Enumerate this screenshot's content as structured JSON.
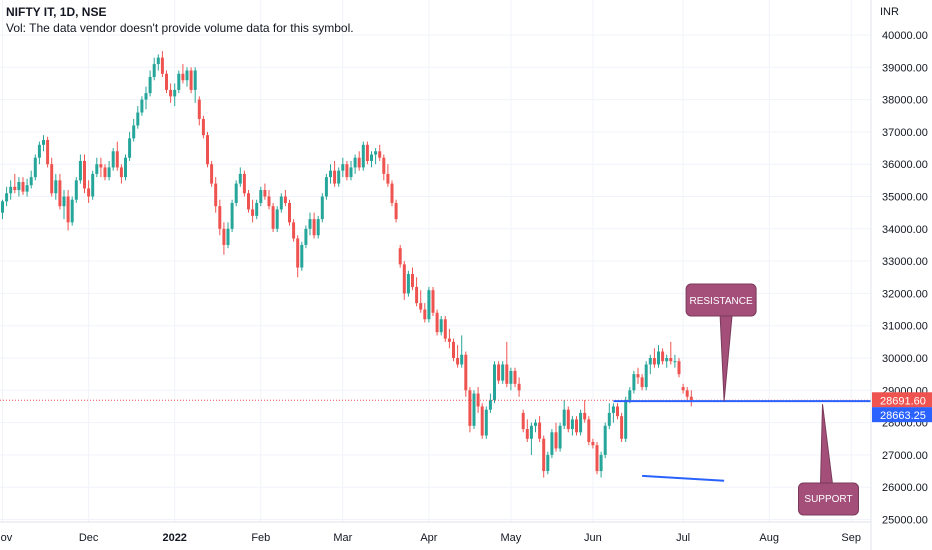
{
  "legend": {
    "title": "NIFTY IT, 1D, NSE",
    "vol_note": "Vol: The data vendor doesn't provide volume data for this symbol."
  },
  "currency": "INR",
  "colors": {
    "up": "#26a69a",
    "down": "#ef5350",
    "line": "#2962ff",
    "callout": "#a34f7a",
    "price_label": "#ef5350",
    "line_label": "#2962ff"
  },
  "chart_data": {
    "type": "candlestick",
    "symbol": "NIFTY IT",
    "interval": "1D",
    "exchange": "NSE",
    "ylim": [
      24900,
      40700
    ],
    "x_ticks": [
      {
        "label": "Nov",
        "i": 0,
        "bold": false
      },
      {
        "label": "Dec",
        "i": 21,
        "bold": false
      },
      {
        "label": "2022",
        "i": 42,
        "bold": true
      },
      {
        "label": "Feb",
        "i": 63,
        "bold": false
      },
      {
        "label": "Mar",
        "i": 83,
        "bold": false
      },
      {
        "label": "Apr",
        "i": 104,
        "bold": false
      },
      {
        "label": "May",
        "i": 124,
        "bold": false
      },
      {
        "label": "Jun",
        "i": 144,
        "bold": false
      },
      {
        "label": "Jul",
        "i": 166,
        "bold": false
      },
      {
        "label": "Aug",
        "i": 187,
        "bold": false
      },
      {
        "label": "Sep",
        "i": 207,
        "bold": false
      }
    ],
    "y_ticks": [
      {
        "value": 40000,
        "label": "40000.00"
      },
      {
        "value": 39000,
        "label": "39000.00"
      },
      {
        "value": 38000,
        "label": "38000.00"
      },
      {
        "value": 37000,
        "label": "37000.00"
      },
      {
        "value": 36000,
        "label": "36000.00"
      },
      {
        "value": 35000,
        "label": "35000.00"
      },
      {
        "value": 34000,
        "label": "34000.00"
      },
      {
        "value": 33000,
        "label": "33000.00"
      },
      {
        "value": 32000,
        "label": "32000.00"
      },
      {
        "value": 31000,
        "label": "31000.00"
      },
      {
        "value": 30000,
        "label": "30000.00"
      },
      {
        "value": 29000,
        "label": "29000.00"
      },
      {
        "value": 28000,
        "label": "28000.00"
      },
      {
        "value": 27000,
        "label": "27000.00"
      },
      {
        "value": 26000,
        "label": "26000.00"
      },
      {
        "value": 25000,
        "label": "25000.00"
      }
    ],
    "last_price": {
      "value": 28691.6,
      "label": "28691.60"
    },
    "resistance_line": {
      "value": 28663.25,
      "label": "28663.25",
      "from_i": 149
    },
    "support_line": {
      "from": {
        "i": 156,
        "value": 26350
      },
      "to": {
        "i": 176,
        "value": 26200
      }
    },
    "annotations": [
      {
        "text": "RESISTANCE",
        "anchor": {
          "i": 176,
          "value": 28663
        }
      },
      {
        "text": "SUPPORT",
        "anchor": {
          "i": 200,
          "value": 28663
        }
      }
    ],
    "candles": [
      {
        "o": 34500,
        "h": 34900,
        "l": 34300,
        "c": 34850
      },
      {
        "o": 34850,
        "h": 35300,
        "l": 34700,
        "c": 35100
      },
      {
        "o": 35100,
        "h": 35500,
        "l": 34900,
        "c": 35300
      },
      {
        "o": 35300,
        "h": 35700,
        "l": 35100,
        "c": 35200
      },
      {
        "o": 35200,
        "h": 35600,
        "l": 35000,
        "c": 35450
      },
      {
        "o": 35450,
        "h": 35600,
        "l": 35050,
        "c": 35150
      },
      {
        "o": 35150,
        "h": 35550,
        "l": 35000,
        "c": 35350
      },
      {
        "o": 35350,
        "h": 35800,
        "l": 35250,
        "c": 35600
      },
      {
        "o": 35600,
        "h": 36300,
        "l": 35500,
        "c": 36200
      },
      {
        "o": 36200,
        "h": 36700,
        "l": 36000,
        "c": 36600
      },
      {
        "o": 36600,
        "h": 36900,
        "l": 36400,
        "c": 36750
      },
      {
        "o": 36750,
        "h": 36850,
        "l": 35900,
        "c": 36000
      },
      {
        "o": 36000,
        "h": 36200,
        "l": 35000,
        "c": 35100
      },
      {
        "o": 35100,
        "h": 35700,
        "l": 34900,
        "c": 35500
      },
      {
        "o": 35500,
        "h": 35700,
        "l": 34600,
        "c": 34700
      },
      {
        "o": 34700,
        "h": 35200,
        "l": 34300,
        "c": 35000
      },
      {
        "o": 35000,
        "h": 35200,
        "l": 33950,
        "c": 34200
      },
      {
        "o": 34200,
        "h": 35000,
        "l": 34100,
        "c": 34900
      },
      {
        "o": 34900,
        "h": 35600,
        "l": 34800,
        "c": 35500
      },
      {
        "o": 35500,
        "h": 36300,
        "l": 35400,
        "c": 36100
      },
      {
        "o": 36100,
        "h": 36300,
        "l": 35100,
        "c": 35250
      },
      {
        "o": 35250,
        "h": 35500,
        "l": 34800,
        "c": 35000
      },
      {
        "o": 35000,
        "h": 35800,
        "l": 34900,
        "c": 35700
      },
      {
        "o": 35700,
        "h": 36200,
        "l": 35600,
        "c": 36000
      },
      {
        "o": 36000,
        "h": 36200,
        "l": 35600,
        "c": 35900
      },
      {
        "o": 35900,
        "h": 36000,
        "l": 35500,
        "c": 35600
      },
      {
        "o": 35600,
        "h": 36100,
        "l": 35500,
        "c": 35900
      },
      {
        "o": 35900,
        "h": 36500,
        "l": 35800,
        "c": 36400
      },
      {
        "o": 36400,
        "h": 36700,
        "l": 35800,
        "c": 35900
      },
      {
        "o": 35900,
        "h": 36000,
        "l": 35400,
        "c": 35600
      },
      {
        "o": 35600,
        "h": 36300,
        "l": 35500,
        "c": 36200
      },
      {
        "o": 36200,
        "h": 37000,
        "l": 36100,
        "c": 36800
      },
      {
        "o": 36800,
        "h": 37400,
        "l": 36700,
        "c": 37200
      },
      {
        "o": 37200,
        "h": 37800,
        "l": 37100,
        "c": 37600
      },
      {
        "o": 37600,
        "h": 38100,
        "l": 37500,
        "c": 38000
      },
      {
        "o": 38000,
        "h": 38400,
        "l": 37700,
        "c": 38200
      },
      {
        "o": 38200,
        "h": 38900,
        "l": 38100,
        "c": 38700
      },
      {
        "o": 38700,
        "h": 39300,
        "l": 38600,
        "c": 39100
      },
      {
        "o": 39100,
        "h": 39400,
        "l": 38900,
        "c": 39300
      },
      {
        "o": 39300,
        "h": 39500,
        "l": 38700,
        "c": 38800
      },
      {
        "o": 38800,
        "h": 38900,
        "l": 38200,
        "c": 38300
      },
      {
        "o": 38300,
        "h": 38500,
        "l": 37900,
        "c": 38100
      },
      {
        "o": 38100,
        "h": 38500,
        "l": 37800,
        "c": 38300
      },
      {
        "o": 38300,
        "h": 38900,
        "l": 38200,
        "c": 38800
      },
      {
        "o": 38800,
        "h": 39100,
        "l": 38500,
        "c": 38600
      },
      {
        "o": 38600,
        "h": 39000,
        "l": 38400,
        "c": 38900
      },
      {
        "o": 38900,
        "h": 39000,
        "l": 38200,
        "c": 38300
      },
      {
        "o": 38300,
        "h": 39000,
        "l": 37900,
        "c": 38900
      },
      {
        "o": 38000,
        "h": 38100,
        "l": 37200,
        "c": 37400
      },
      {
        "o": 37400,
        "h": 37500,
        "l": 36800,
        "c": 36900
      },
      {
        "o": 36900,
        "h": 37000,
        "l": 35900,
        "c": 36000
      },
      {
        "o": 36000,
        "h": 36100,
        "l": 35300,
        "c": 35400
      },
      {
        "o": 35400,
        "h": 35600,
        "l": 34500,
        "c": 34700
      },
      {
        "o": 34700,
        "h": 34900,
        "l": 33800,
        "c": 34000
      },
      {
        "o": 34000,
        "h": 34200,
        "l": 33200,
        "c": 33500
      },
      {
        "o": 33500,
        "h": 34200,
        "l": 33400,
        "c": 34000
      },
      {
        "o": 34000,
        "h": 34900,
        "l": 33900,
        "c": 34800
      },
      {
        "o": 34800,
        "h": 35500,
        "l": 34700,
        "c": 35400
      },
      {
        "o": 35400,
        "h": 35900,
        "l": 35300,
        "c": 35700
      },
      {
        "o": 35700,
        "h": 35800,
        "l": 35000,
        "c": 35100
      },
      {
        "o": 35100,
        "h": 35200,
        "l": 34500,
        "c": 34600
      },
      {
        "o": 34600,
        "h": 34900,
        "l": 34200,
        "c": 34400
      },
      {
        "o": 34400,
        "h": 34900,
        "l": 34300,
        "c": 34800
      },
      {
        "o": 34800,
        "h": 35300,
        "l": 34700,
        "c": 35200
      },
      {
        "o": 35200,
        "h": 35400,
        "l": 34900,
        "c": 35000
      },
      {
        "o": 35000,
        "h": 35200,
        "l": 34600,
        "c": 34700
      },
      {
        "o": 34700,
        "h": 34800,
        "l": 33900,
        "c": 34000
      },
      {
        "o": 34000,
        "h": 34700,
        "l": 33900,
        "c": 34600
      },
      {
        "o": 34600,
        "h": 35100,
        "l": 34500,
        "c": 35000
      },
      {
        "o": 35000,
        "h": 35200,
        "l": 34700,
        "c": 34800
      },
      {
        "o": 34800,
        "h": 34900,
        "l": 34100,
        "c": 34200
      },
      {
        "o": 34200,
        "h": 34300,
        "l": 33600,
        "c": 33700
      },
      {
        "o": 33700,
        "h": 33800,
        "l": 32500,
        "c": 32800
      },
      {
        "o": 32800,
        "h": 33600,
        "l": 32700,
        "c": 33500
      },
      {
        "o": 33500,
        "h": 34100,
        "l": 33400,
        "c": 34000
      },
      {
        "o": 34000,
        "h": 34500,
        "l": 33800,
        "c": 34300
      },
      {
        "o": 34300,
        "h": 34500,
        "l": 33700,
        "c": 33800
      },
      {
        "o": 33800,
        "h": 34400,
        "l": 33700,
        "c": 34300
      },
      {
        "o": 34300,
        "h": 35100,
        "l": 34200,
        "c": 35000
      },
      {
        "o": 35000,
        "h": 35700,
        "l": 34900,
        "c": 35600
      },
      {
        "o": 35600,
        "h": 36000,
        "l": 35400,
        "c": 35800
      },
      {
        "o": 35800,
        "h": 36100,
        "l": 35300,
        "c": 35400
      },
      {
        "o": 35400,
        "h": 35900,
        "l": 35300,
        "c": 35800
      },
      {
        "o": 35800,
        "h": 36200,
        "l": 35600,
        "c": 36000
      },
      {
        "o": 36000,
        "h": 36100,
        "l": 35500,
        "c": 35600
      },
      {
        "o": 35600,
        "h": 36100,
        "l": 35500,
        "c": 35900
      },
      {
        "o": 35900,
        "h": 36300,
        "l": 35700,
        "c": 36200
      },
      {
        "o": 36200,
        "h": 36400,
        "l": 35800,
        "c": 35900
      },
      {
        "o": 35900,
        "h": 36700,
        "l": 35800,
        "c": 36600
      },
      {
        "o": 36600,
        "h": 36700,
        "l": 36000,
        "c": 36100
      },
      {
        "o": 36100,
        "h": 36400,
        "l": 35900,
        "c": 36300
      },
      {
        "o": 36300,
        "h": 36500,
        "l": 36000,
        "c": 36400
      },
      {
        "o": 36400,
        "h": 36600,
        "l": 36100,
        "c": 36200
      },
      {
        "o": 36200,
        "h": 36300,
        "l": 35500,
        "c": 35700
      },
      {
        "o": 35700,
        "h": 36000,
        "l": 35300,
        "c": 35400
      },
      {
        "o": 35400,
        "h": 35500,
        "l": 34700,
        "c": 34800
      },
      {
        "o": 34800,
        "h": 34900,
        "l": 34200,
        "c": 34300
      },
      {
        "o": 33400,
        "h": 33500,
        "l": 32800,
        "c": 32900
      },
      {
        "o": 32900,
        "h": 33000,
        "l": 31800,
        "c": 32000
      },
      {
        "o": 32000,
        "h": 32700,
        "l": 31900,
        "c": 32600
      },
      {
        "o": 32600,
        "h": 32800,
        "l": 32100,
        "c": 32200
      },
      {
        "o": 32200,
        "h": 32500,
        "l": 31600,
        "c": 31700
      },
      {
        "o": 31700,
        "h": 32100,
        "l": 31400,
        "c": 31500
      },
      {
        "o": 31500,
        "h": 31700,
        "l": 31100,
        "c": 31200
      },
      {
        "o": 31200,
        "h": 32200,
        "l": 31100,
        "c": 32100
      },
      {
        "o": 32100,
        "h": 32200,
        "l": 31300,
        "c": 31400
      },
      {
        "o": 31400,
        "h": 31500,
        "l": 30700,
        "c": 30800
      },
      {
        "o": 30800,
        "h": 31300,
        "l": 30700,
        "c": 31200
      },
      {
        "o": 31200,
        "h": 31300,
        "l": 30500,
        "c": 30600
      },
      {
        "o": 30600,
        "h": 30900,
        "l": 30300,
        "c": 30500
      },
      {
        "o": 30500,
        "h": 30600,
        "l": 29900,
        "c": 30000
      },
      {
        "o": 30000,
        "h": 30400,
        "l": 29700,
        "c": 29800
      },
      {
        "o": 29800,
        "h": 30700,
        "l": 29700,
        "c": 30100
      },
      {
        "o": 30100,
        "h": 30200,
        "l": 28800,
        "c": 29000
      },
      {
        "o": 29000,
        "h": 29100,
        "l": 27700,
        "c": 27900
      },
      {
        "o": 27900,
        "h": 29000,
        "l": 27800,
        "c": 28900
      },
      {
        "o": 28900,
        "h": 29100,
        "l": 28300,
        "c": 28500
      },
      {
        "o": 28500,
        "h": 28600,
        "l": 27500,
        "c": 27600
      },
      {
        "o": 27600,
        "h": 28500,
        "l": 27500,
        "c": 28400
      },
      {
        "o": 28400,
        "h": 28900,
        "l": 28300,
        "c": 28700
      },
      {
        "o": 28700,
        "h": 29900,
        "l": 28600,
        "c": 29800
      },
      {
        "o": 29800,
        "h": 29900,
        "l": 29200,
        "c": 29300
      },
      {
        "o": 29300,
        "h": 29900,
        "l": 29200,
        "c": 29800
      },
      {
        "o": 29800,
        "h": 30500,
        "l": 29100,
        "c": 29200
      },
      {
        "o": 29200,
        "h": 29700,
        "l": 29000,
        "c": 29600
      },
      {
        "o": 29600,
        "h": 29700,
        "l": 29100,
        "c": 29200
      },
      {
        "o": 29200,
        "h": 29400,
        "l": 28800,
        "c": 29000
      },
      {
        "o": 28300,
        "h": 28400,
        "l": 27700,
        "c": 27800
      },
      {
        "o": 27800,
        "h": 28100,
        "l": 27400,
        "c": 27500
      },
      {
        "o": 27500,
        "h": 28000,
        "l": 27000,
        "c": 27900
      },
      {
        "o": 27900,
        "h": 28100,
        "l": 27700,
        "c": 28000
      },
      {
        "o": 28000,
        "h": 28200,
        "l": 27400,
        "c": 27500
      },
      {
        "o": 27500,
        "h": 27600,
        "l": 26300,
        "c": 26500
      },
      {
        "o": 26500,
        "h": 27100,
        "l": 26400,
        "c": 27000
      },
      {
        "o": 27000,
        "h": 27800,
        "l": 26900,
        "c": 27700
      },
      {
        "o": 27700,
        "h": 28000,
        "l": 27100,
        "c": 27200
      },
      {
        "o": 27200,
        "h": 28000,
        "l": 27100,
        "c": 27900
      },
      {
        "o": 27900,
        "h": 28700,
        "l": 27800,
        "c": 28400
      },
      {
        "o": 28400,
        "h": 28500,
        "l": 27700,
        "c": 27800
      },
      {
        "o": 27800,
        "h": 28200,
        "l": 27600,
        "c": 28100
      },
      {
        "o": 28100,
        "h": 28200,
        "l": 27600,
        "c": 27700
      },
      {
        "o": 27700,
        "h": 28400,
        "l": 27600,
        "c": 28300
      },
      {
        "o": 28300,
        "h": 28700,
        "l": 28000,
        "c": 28100
      },
      {
        "o": 28100,
        "h": 28200,
        "l": 27300,
        "c": 27400
      },
      {
        "o": 27400,
        "h": 27500,
        "l": 27200,
        "c": 27300
      },
      {
        "o": 27300,
        "h": 27400,
        "l": 26400,
        "c": 26500
      },
      {
        "o": 26500,
        "h": 27100,
        "l": 26300,
        "c": 27000
      },
      {
        "o": 27000,
        "h": 28000,
        "l": 26900,
        "c": 27900
      },
      {
        "o": 27900,
        "h": 28600,
        "l": 27800,
        "c": 28300
      },
      {
        "o": 28300,
        "h": 28600,
        "l": 28000,
        "c": 28500
      },
      {
        "o": 28500,
        "h": 28600,
        "l": 28100,
        "c": 28200
      },
      {
        "o": 28200,
        "h": 28300,
        "l": 27400,
        "c": 27500
      },
      {
        "o": 27500,
        "h": 28800,
        "l": 27400,
        "c": 28700
      },
      {
        "o": 28700,
        "h": 29100,
        "l": 28600,
        "c": 29000
      },
      {
        "o": 29000,
        "h": 29600,
        "l": 28900,
        "c": 29500
      },
      {
        "o": 29500,
        "h": 29700,
        "l": 29200,
        "c": 29400
      },
      {
        "o": 29400,
        "h": 29500,
        "l": 29000,
        "c": 29100
      },
      {
        "o": 29100,
        "h": 29900,
        "l": 29000,
        "c": 29800
      },
      {
        "o": 29800,
        "h": 30100,
        "l": 29500,
        "c": 30000
      },
      {
        "o": 30000,
        "h": 30300,
        "l": 29700,
        "c": 29800
      },
      {
        "o": 29800,
        "h": 30400,
        "l": 29700,
        "c": 30200
      },
      {
        "o": 30200,
        "h": 30300,
        "l": 29800,
        "c": 29900
      },
      {
        "o": 29900,
        "h": 30100,
        "l": 29700,
        "c": 30000
      },
      {
        "o": 30000,
        "h": 30500,
        "l": 29800,
        "c": 29900
      },
      {
        "o": 29900,
        "h": 30100,
        "l": 29700,
        "c": 29900
      },
      {
        "o": 29900,
        "h": 30000,
        "l": 29400,
        "c": 29500
      },
      {
        "o": 29100,
        "h": 29200,
        "l": 28900,
        "c": 29000
      },
      {
        "o": 29000,
        "h": 29100,
        "l": 28700,
        "c": 28800
      },
      {
        "o": 28800,
        "h": 29000,
        "l": 28500,
        "c": 28700
      }
    ]
  }
}
